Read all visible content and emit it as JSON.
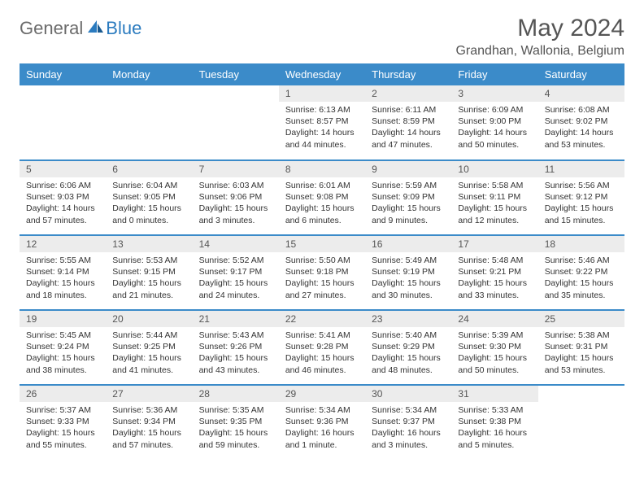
{
  "brand": {
    "general": "General",
    "blue": "Blue"
  },
  "title": "May 2024",
  "location": "Grandhan, Wallonia, Belgium",
  "colors": {
    "header_bg": "#3b8bc9",
    "header_text": "#ffffff",
    "day_num_bg": "#ececec",
    "row_divider": "#3b8bc9",
    "logo_blue": "#2b7bbf",
    "logo_gray": "#6b6b6b"
  },
  "weekdays": [
    "Sunday",
    "Monday",
    "Tuesday",
    "Wednesday",
    "Thursday",
    "Friday",
    "Saturday"
  ],
  "weeks": [
    [
      {
        "n": "",
        "sr": "",
        "ss": "",
        "dl": ""
      },
      {
        "n": "",
        "sr": "",
        "ss": "",
        "dl": ""
      },
      {
        "n": "",
        "sr": "",
        "ss": "",
        "dl": ""
      },
      {
        "n": "1",
        "sr": "6:13 AM",
        "ss": "8:57 PM",
        "dl": "14 hours and 44 minutes."
      },
      {
        "n": "2",
        "sr": "6:11 AM",
        "ss": "8:59 PM",
        "dl": "14 hours and 47 minutes."
      },
      {
        "n": "3",
        "sr": "6:09 AM",
        "ss": "9:00 PM",
        "dl": "14 hours and 50 minutes."
      },
      {
        "n": "4",
        "sr": "6:08 AM",
        "ss": "9:02 PM",
        "dl": "14 hours and 53 minutes."
      }
    ],
    [
      {
        "n": "5",
        "sr": "6:06 AM",
        "ss": "9:03 PM",
        "dl": "14 hours and 57 minutes."
      },
      {
        "n": "6",
        "sr": "6:04 AM",
        "ss": "9:05 PM",
        "dl": "15 hours and 0 minutes."
      },
      {
        "n": "7",
        "sr": "6:03 AM",
        "ss": "9:06 PM",
        "dl": "15 hours and 3 minutes."
      },
      {
        "n": "8",
        "sr": "6:01 AM",
        "ss": "9:08 PM",
        "dl": "15 hours and 6 minutes."
      },
      {
        "n": "9",
        "sr": "5:59 AM",
        "ss": "9:09 PM",
        "dl": "15 hours and 9 minutes."
      },
      {
        "n": "10",
        "sr": "5:58 AM",
        "ss": "9:11 PM",
        "dl": "15 hours and 12 minutes."
      },
      {
        "n": "11",
        "sr": "5:56 AM",
        "ss": "9:12 PM",
        "dl": "15 hours and 15 minutes."
      }
    ],
    [
      {
        "n": "12",
        "sr": "5:55 AM",
        "ss": "9:14 PM",
        "dl": "15 hours and 18 minutes."
      },
      {
        "n": "13",
        "sr": "5:53 AM",
        "ss": "9:15 PM",
        "dl": "15 hours and 21 minutes."
      },
      {
        "n": "14",
        "sr": "5:52 AM",
        "ss": "9:17 PM",
        "dl": "15 hours and 24 minutes."
      },
      {
        "n": "15",
        "sr": "5:50 AM",
        "ss": "9:18 PM",
        "dl": "15 hours and 27 minutes."
      },
      {
        "n": "16",
        "sr": "5:49 AM",
        "ss": "9:19 PM",
        "dl": "15 hours and 30 minutes."
      },
      {
        "n": "17",
        "sr": "5:48 AM",
        "ss": "9:21 PM",
        "dl": "15 hours and 33 minutes."
      },
      {
        "n": "18",
        "sr": "5:46 AM",
        "ss": "9:22 PM",
        "dl": "15 hours and 35 minutes."
      }
    ],
    [
      {
        "n": "19",
        "sr": "5:45 AM",
        "ss": "9:24 PM",
        "dl": "15 hours and 38 minutes."
      },
      {
        "n": "20",
        "sr": "5:44 AM",
        "ss": "9:25 PM",
        "dl": "15 hours and 41 minutes."
      },
      {
        "n": "21",
        "sr": "5:43 AM",
        "ss": "9:26 PM",
        "dl": "15 hours and 43 minutes."
      },
      {
        "n": "22",
        "sr": "5:41 AM",
        "ss": "9:28 PM",
        "dl": "15 hours and 46 minutes."
      },
      {
        "n": "23",
        "sr": "5:40 AM",
        "ss": "9:29 PM",
        "dl": "15 hours and 48 minutes."
      },
      {
        "n": "24",
        "sr": "5:39 AM",
        "ss": "9:30 PM",
        "dl": "15 hours and 50 minutes."
      },
      {
        "n": "25",
        "sr": "5:38 AM",
        "ss": "9:31 PM",
        "dl": "15 hours and 53 minutes."
      }
    ],
    [
      {
        "n": "26",
        "sr": "5:37 AM",
        "ss": "9:33 PM",
        "dl": "15 hours and 55 minutes."
      },
      {
        "n": "27",
        "sr": "5:36 AM",
        "ss": "9:34 PM",
        "dl": "15 hours and 57 minutes."
      },
      {
        "n": "28",
        "sr": "5:35 AM",
        "ss": "9:35 PM",
        "dl": "15 hours and 59 minutes."
      },
      {
        "n": "29",
        "sr": "5:34 AM",
        "ss": "9:36 PM",
        "dl": "16 hours and 1 minute."
      },
      {
        "n": "30",
        "sr": "5:34 AM",
        "ss": "9:37 PM",
        "dl": "16 hours and 3 minutes."
      },
      {
        "n": "31",
        "sr": "5:33 AM",
        "ss": "9:38 PM",
        "dl": "16 hours and 5 minutes."
      },
      {
        "n": "",
        "sr": "",
        "ss": "",
        "dl": ""
      }
    ]
  ]
}
